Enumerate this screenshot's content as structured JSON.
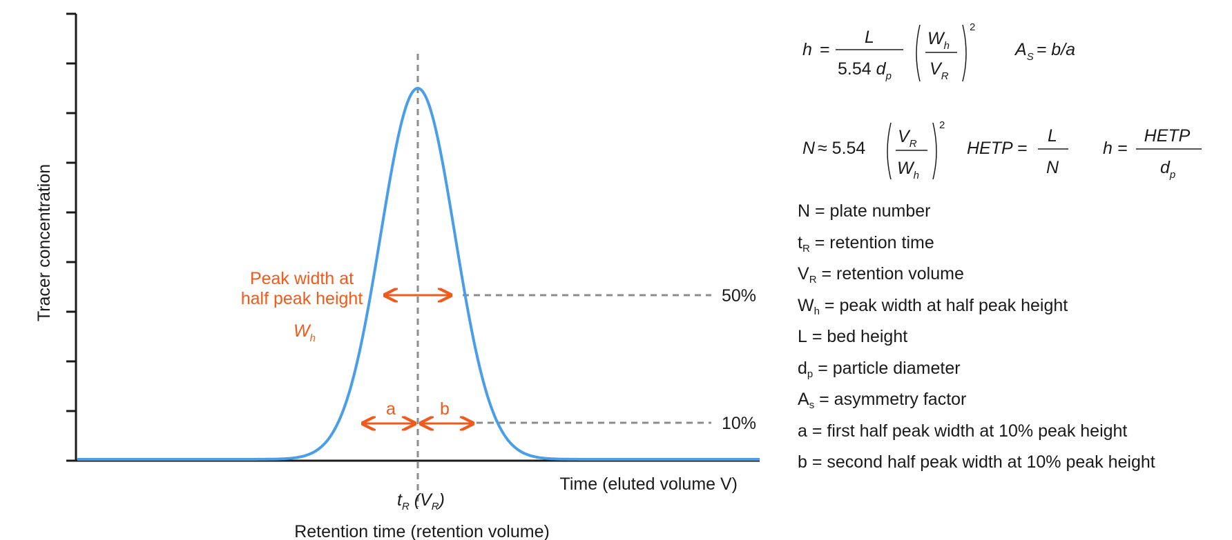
{
  "diagram": {
    "y_axis_label": "Tracer concentration",
    "x_axis_label": "Time (eluted volume V)",
    "peak_label": {
      "main": "t",
      "sub": "R",
      "paren_open": " (",
      "v": "V",
      "v_sub": "R",
      "paren_close": ")"
    },
    "retention_caption": "Retention time (retention volume)",
    "half_width_label": {
      "line1": "Peak width at",
      "line2": "half peak height",
      "sym": "W",
      "sym_sub": "h"
    },
    "level_50": "50%",
    "level_10": "10%",
    "label_a": "a",
    "label_b": "b",
    "colors": {
      "curve": "#4a9de8",
      "accent": "#f05a1a",
      "axis": "#1a1a1a",
      "dash": "#8c8c8c"
    }
  },
  "formulas": {
    "f1": {
      "h": "h",
      "eq": "=",
      "L": "L",
      "den": "5.54",
      "d": "d",
      "dsub": "p",
      "W": "W",
      "Wsub": "h",
      "V": "V",
      "Vsub": "R",
      "exp": "2"
    },
    "f2": {
      "A": "A",
      "Asub": "S",
      "rhs": "= b/a"
    },
    "f3": {
      "N": "N",
      "approx": "≈ 5.54",
      "V": "V",
      "Vsub": "R",
      "W": "W",
      "Wsub": "h",
      "exp": "2"
    },
    "f4": {
      "lhs": "HETP =",
      "num": "L",
      "den": "N"
    },
    "f5": {
      "lhs": "h =",
      "num": "HETP",
      "d": "d",
      "dsub": "p"
    }
  },
  "legend": [
    {
      "sym": "N",
      "sub": "",
      "text": " = plate number"
    },
    {
      "sym": "t",
      "sub": "R",
      "text": " = retention time"
    },
    {
      "sym": "V",
      "sub": "R",
      "text": " = retention volume"
    },
    {
      "sym": "W",
      "sub": "h",
      "text": " = peak width at half peak height"
    },
    {
      "sym": "L",
      "sub": "",
      "text": " = bed height"
    },
    {
      "sym": "d",
      "sub": "p",
      "text": " = particle diameter"
    },
    {
      "sym": "A",
      "sub": "s",
      "text": " = asymmetry factor"
    },
    {
      "sym": "a",
      "sub": "",
      "text": " = first half peak width at 10% peak height"
    },
    {
      "sym": "b",
      "sub": "",
      "text": " = second half peak width at 10% peak height"
    }
  ]
}
